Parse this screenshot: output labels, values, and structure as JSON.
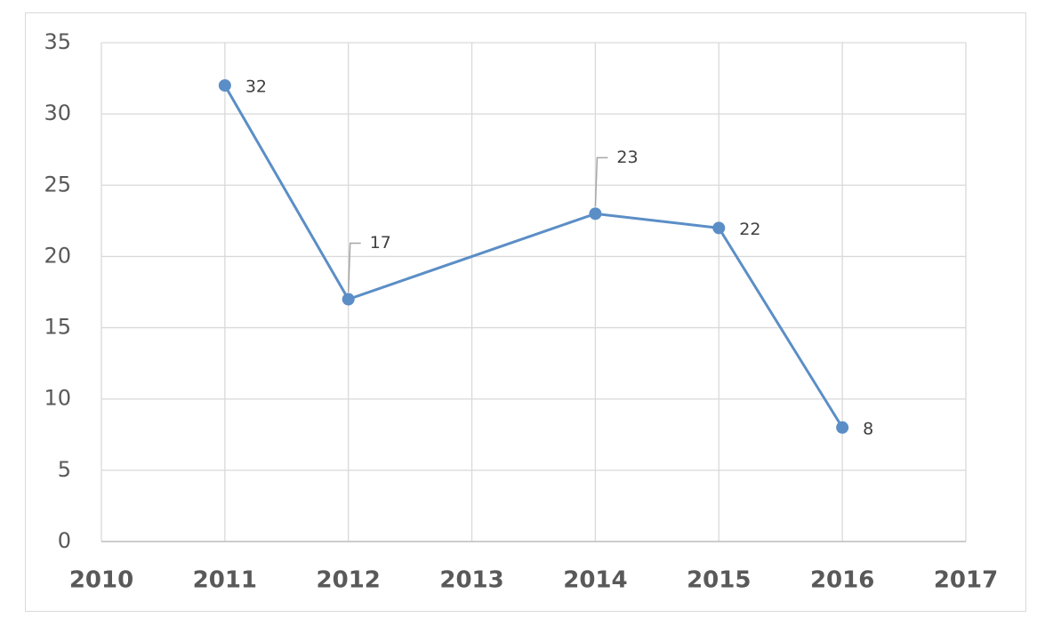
{
  "chart_data": {
    "type": "line",
    "x": [
      2011,
      2012,
      2014,
      2015,
      2016
    ],
    "series": [
      {
        "color": "#5b8ec6",
        "values": [
          32,
          17,
          23,
          22,
          8
        ]
      }
    ],
    "xlim": [
      2010,
      2017
    ],
    "xticks": [
      2010,
      2011,
      2012,
      2013,
      2014,
      2015,
      2016,
      2017
    ],
    "ylim": [
      0,
      35
    ],
    "yticks": [
      0,
      5,
      10,
      15,
      20,
      25,
      30,
      35
    ],
    "grid": true
  }
}
